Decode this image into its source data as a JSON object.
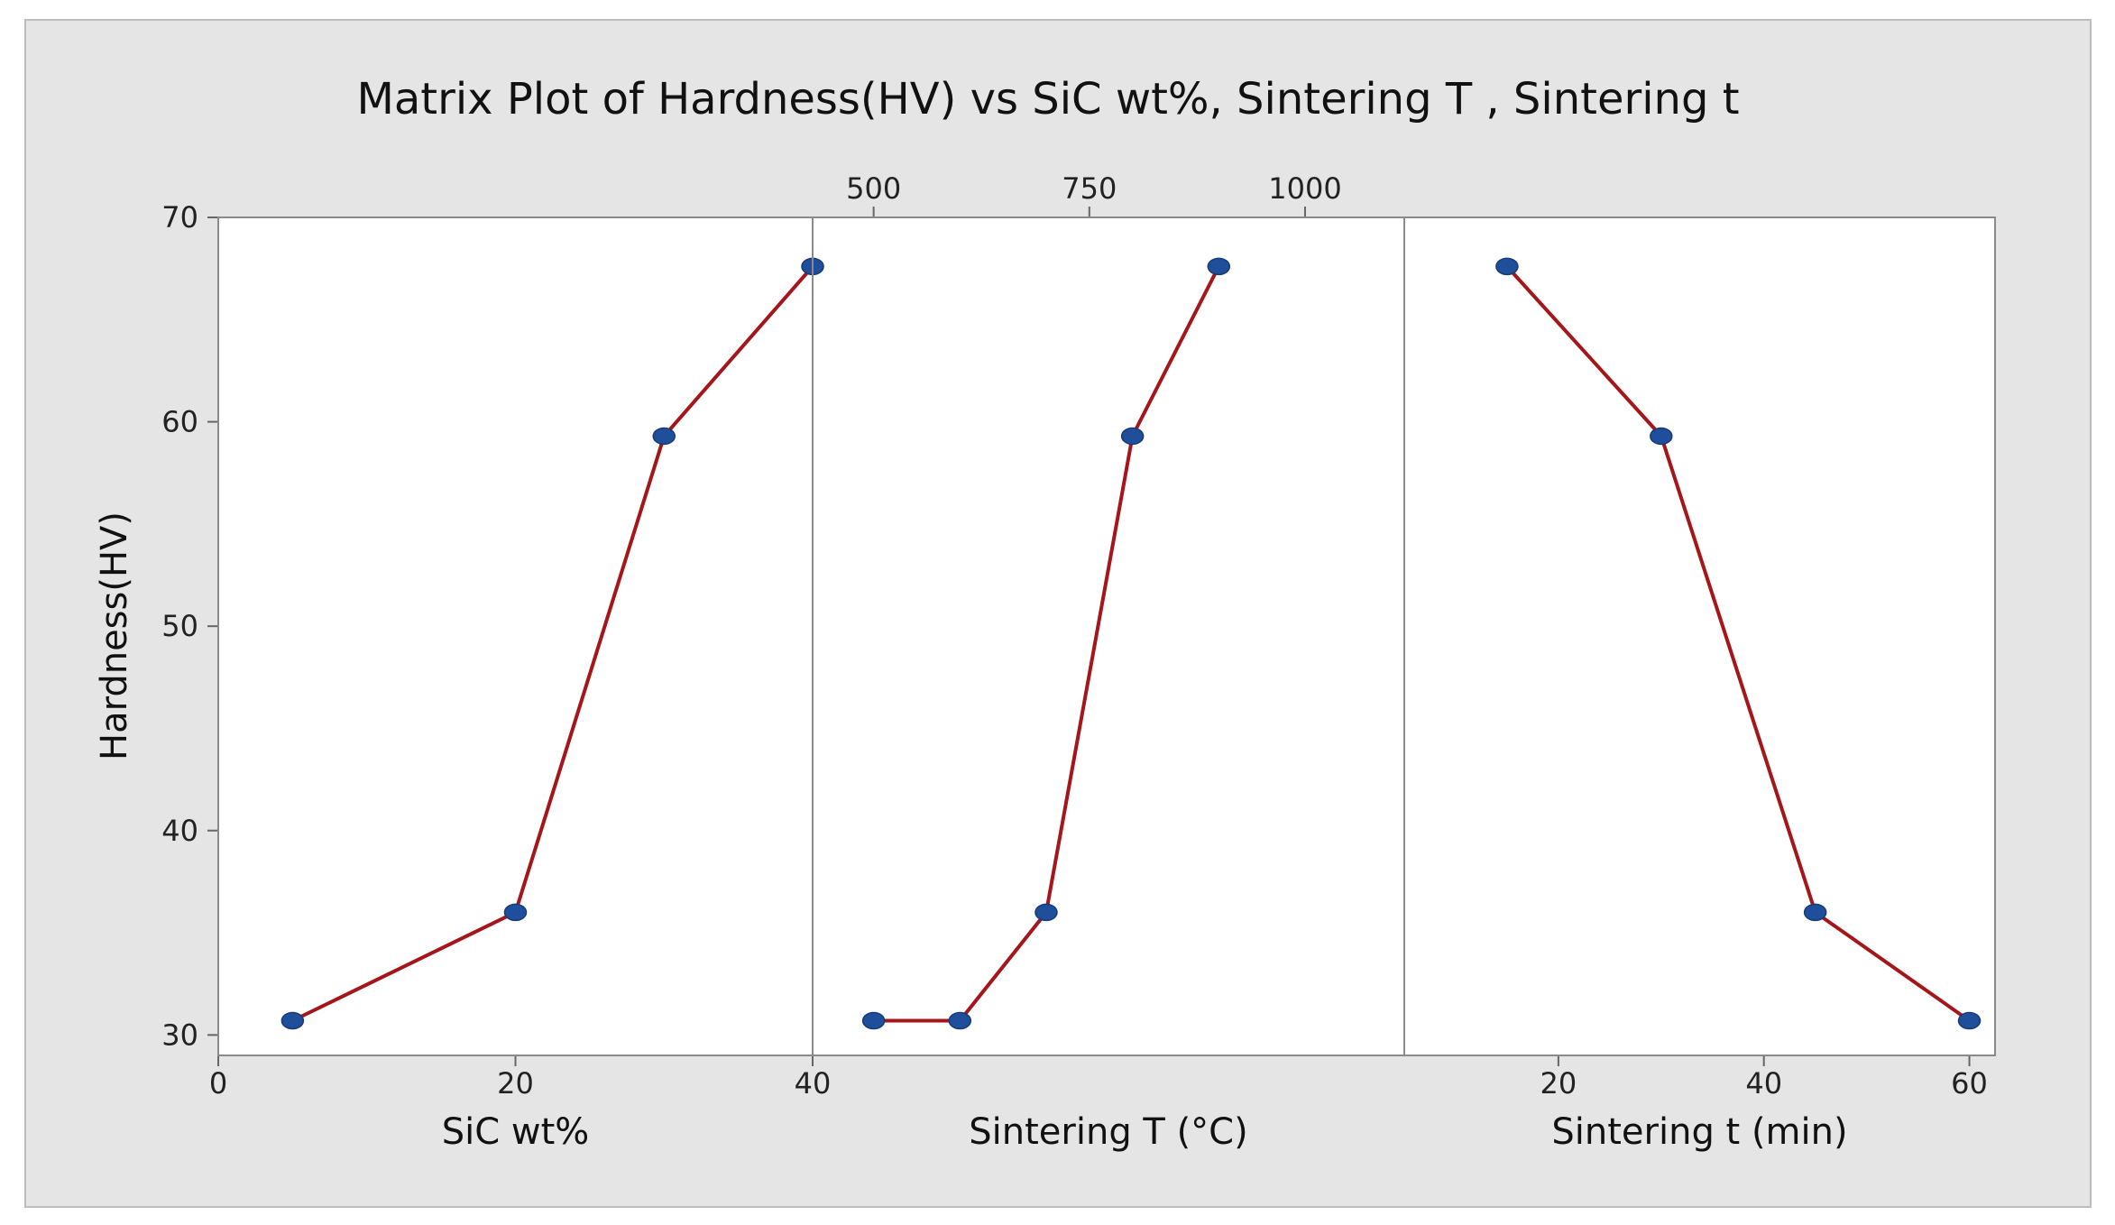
{
  "chart_data": {
    "type": "line",
    "title": "Matrix Plot of Hardness(HV) vs SiC wt%, Sintering T , Sintering t",
    "ylabel": "Hardness(HV)",
    "ylim": [
      29,
      70
    ],
    "yticks": [
      30,
      40,
      50,
      60,
      70
    ],
    "grid": false,
    "legend": "none",
    "panels": [
      {
        "name": "sic",
        "xlabel": "SiC wt%",
        "xlim": [
          0,
          40
        ],
        "xticks": [
          0,
          20,
          40
        ],
        "tick_side": "bottom",
        "x": [
          5,
          20,
          30,
          40
        ],
        "y": [
          30.7,
          36.0,
          59.3,
          67.6
        ]
      },
      {
        "name": "sintering-t-temperature",
        "xlabel": "Sintering T (°C)",
        "xlim": [
          429.3,
          1115
        ],
        "xticks": [
          500,
          750,
          1000
        ],
        "tick_side": "top",
        "x": [
          500,
          600,
          700,
          800,
          900
        ],
        "y": [
          30.7,
          30.7,
          36.0,
          59.3,
          67.6
        ]
      },
      {
        "name": "sintering-t-time",
        "xlabel": "Sintering t (min)",
        "xlim": [
          5,
          62.5
        ],
        "xticks": [
          20,
          40,
          60
        ],
        "tick_side": "bottom",
        "x": [
          15,
          30,
          45,
          60
        ],
        "y": [
          67.6,
          59.3,
          36.0,
          30.7
        ]
      }
    ]
  }
}
